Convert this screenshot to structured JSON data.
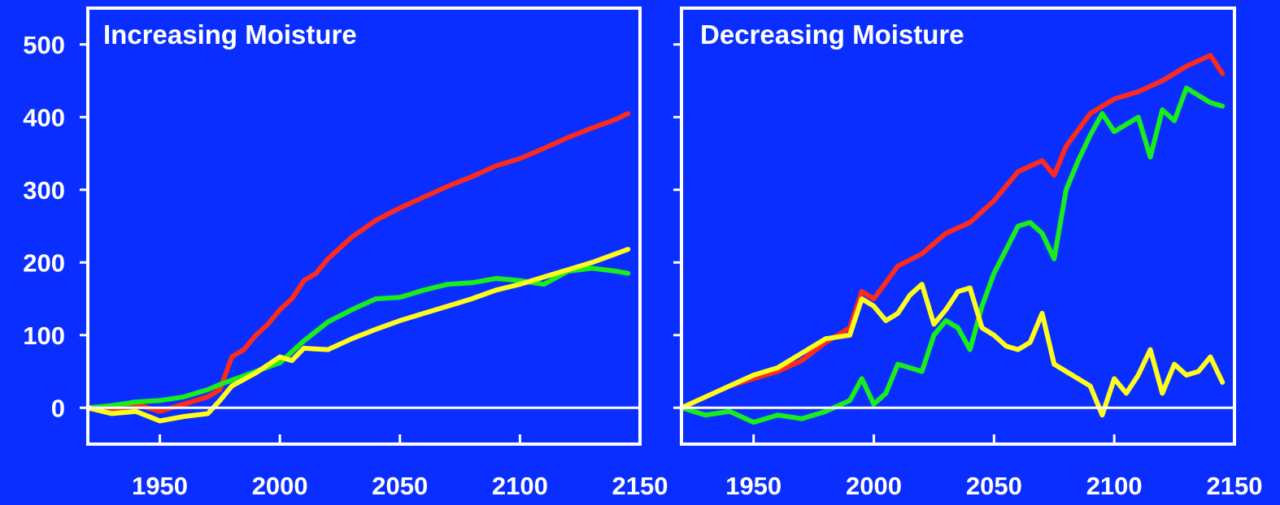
{
  "colors": {
    "background": "#0a2eff",
    "axes": "#ffffff",
    "red": "#ff2a1a",
    "green": "#19ee1a",
    "yellow": "#ffff1a"
  },
  "chart_data": [
    {
      "type": "line",
      "title": "Increasing Moisture",
      "xlim": [
        1920,
        2150
      ],
      "ylim": [
        -50,
        550
      ],
      "xticks": [
        1950,
        2000,
        2050,
        2100,
        2150
      ],
      "yticks": [
        0,
        100,
        200,
        300,
        400,
        500
      ],
      "zero_line": true,
      "series": [
        {
          "color": "red",
          "x": [
            1920,
            1930,
            1940,
            1950,
            1960,
            1970,
            1975,
            1980,
            1985,
            1990,
            1995,
            2000,
            2005,
            2010,
            2015,
            2020,
            2025,
            2030,
            2040,
            2050,
            2060,
            2070,
            2080,
            2090,
            2100,
            2110,
            2120,
            2130,
            2140,
            2145
          ],
          "y": [
            0,
            -5,
            5,
            -5,
            5,
            15,
            25,
            70,
            80,
            100,
            115,
            135,
            150,
            175,
            185,
            205,
            220,
            235,
            258,
            275,
            290,
            305,
            318,
            333,
            343,
            357,
            372,
            385,
            397,
            405
          ]
        },
        {
          "color": "green",
          "x": [
            1920,
            1930,
            1940,
            1950,
            1960,
            1970,
            1975,
            1980,
            1990,
            2000,
            2010,
            2020,
            2030,
            2040,
            2050,
            2060,
            2070,
            2080,
            2090,
            2100,
            2110,
            2120,
            2130,
            2140,
            2145
          ],
          "y": [
            0,
            3,
            8,
            10,
            15,
            25,
            32,
            38,
            50,
            62,
            92,
            118,
            135,
            150,
            152,
            162,
            170,
            172,
            178,
            175,
            170,
            188,
            192,
            188,
            185
          ]
        },
        {
          "color": "yellow",
          "x": [
            1920,
            1930,
            1940,
            1950,
            1960,
            1970,
            1975,
            1980,
            1990,
            2000,
            2005,
            2010,
            2020,
            2030,
            2040,
            2050,
            2060,
            2070,
            2080,
            2090,
            2100,
            2110,
            2120,
            2130,
            2140,
            2145
          ],
          "y": [
            0,
            -8,
            -5,
            -18,
            -12,
            -8,
            10,
            30,
            48,
            70,
            65,
            82,
            80,
            95,
            108,
            120,
            130,
            140,
            150,
            162,
            170,
            180,
            190,
            200,
            212,
            218
          ]
        }
      ]
    },
    {
      "type": "line",
      "title": "Decreasing Moisture",
      "xlim": [
        1920,
        2150
      ],
      "ylim": [
        -50,
        550
      ],
      "xticks": [
        1950,
        2000,
        2050,
        2100,
        2150
      ],
      "yticks": [
        0,
        100,
        200,
        300,
        400,
        500
      ],
      "zero_line": true,
      "series": [
        {
          "color": "red",
          "x": [
            1920,
            1930,
            1940,
            1950,
            1960,
            1970,
            1980,
            1990,
            1995,
            2000,
            2010,
            2020,
            2030,
            2040,
            2050,
            2060,
            2070,
            2075,
            2080,
            2090,
            2100,
            2110,
            2120,
            2130,
            2140,
            2145
          ],
          "y": [
            0,
            15,
            30,
            40,
            50,
            65,
            90,
            110,
            160,
            150,
            195,
            212,
            240,
            255,
            285,
            325,
            340,
            320,
            360,
            405,
            425,
            435,
            450,
            470,
            485,
            460
          ]
        },
        {
          "color": "green",
          "x": [
            1920,
            1930,
            1940,
            1950,
            1960,
            1970,
            1980,
            1990,
            1995,
            2000,
            2005,
            2010,
            2020,
            2025,
            2030,
            2035,
            2040,
            2045,
            2050,
            2060,
            2065,
            2070,
            2075,
            2080,
            2085,
            2090,
            2095,
            2100,
            2110,
            2115,
            2120,
            2125,
            2130,
            2140,
            2145
          ],
          "y": [
            0,
            -10,
            -5,
            -20,
            -10,
            -15,
            -5,
            10,
            40,
            5,
            20,
            60,
            50,
            100,
            120,
            110,
            80,
            140,
            185,
            250,
            255,
            240,
            205,
            300,
            340,
            375,
            405,
            380,
            400,
            345,
            410,
            395,
            440,
            420,
            415
          ]
        },
        {
          "color": "yellow",
          "x": [
            1920,
            1930,
            1940,
            1950,
            1960,
            1970,
            1980,
            1990,
            1995,
            2000,
            2005,
            2010,
            2015,
            2020,
            2025,
            2030,
            2035,
            2040,
            2045,
            2050,
            2055,
            2060,
            2065,
            2070,
            2075,
            2080,
            2085,
            2090,
            2095,
            2100,
            2105,
            2110,
            2115,
            2120,
            2125,
            2130,
            2135,
            2140,
            2145
          ],
          "y": [
            0,
            15,
            30,
            45,
            55,
            75,
            95,
            100,
            150,
            140,
            120,
            130,
            155,
            170,
            115,
            135,
            160,
            165,
            110,
            100,
            85,
            80,
            90,
            130,
            60,
            50,
            40,
            30,
            -10,
            40,
            20,
            45,
            80,
            20,
            60,
            45,
            50,
            70,
            35
          ]
        }
      ]
    }
  ]
}
